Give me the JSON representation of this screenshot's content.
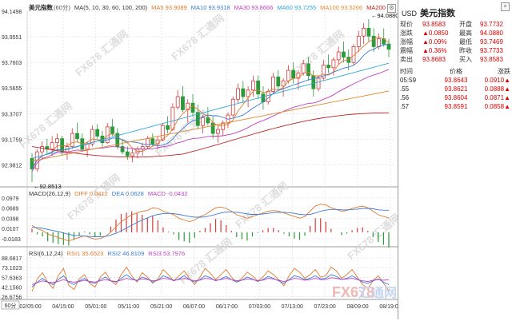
{
  "header": {
    "title": "美元指数",
    "period": "(60分)",
    "ma_label": "MA(5, 10, 30, 60, 100, 200)",
    "ma5": "MA5 93.9089",
    "ma10": "MA10 93.9318",
    "ma30": "MA30 93.8666",
    "ma60": "MA60 93.7255",
    "ma100": "MA100 93.5266",
    "ma200": "MA200"
  },
  "macd_header": {
    "label": "MACD(26,12,9)",
    "diff": "DIFF 0.0412",
    "dea": "DEA 0.0628",
    "macd": "MACD -0.0432"
  },
  "rsi_header": {
    "label": "RSI(6,12,24)",
    "rsi1": "RSI1 35.6523",
    "rsi2": "RSI2 46.8109",
    "rsi3": "RSI3 53.7976"
  },
  "price_axis": [
    "94.1498",
    "93.9551",
    "93.7603",
    "93.5655",
    "93.3707",
    "93.1759",
    "92.9812"
  ],
  "macd_axis": [
    "0.0979",
    "0.0689",
    "0.0398",
    "0.0107",
    "-0.0183"
  ],
  "rsi_axis": [
    "88.6817",
    "73.1023",
    "57.6363",
    "42.1560",
    "26.6756"
  ],
  "time_axis": [
    "02/05:00",
    "04/15:00",
    "05/01:00",
    "05/11:00",
    "05/21:00",
    "06/07:00",
    "06/17:00",
    "07/03:00",
    "07/13:00",
    "07/23:00",
    "08/09:00",
    "08/19:00"
  ],
  "period_badge": "60分",
  "high_label": "94.0880",
  "low_label": "92.8513",
  "watermark": "FX678 汇通网",
  "watermark_brand": "FX678",
  "watermark_cn": "汇通网",
  "side": {
    "symbol": "USD",
    "name": "美元指数",
    "quote": [
      {
        "k": "现价",
        "v": "93.8583",
        "k2": "开盘",
        "v2": "93.7732"
      },
      {
        "k": "涨跌",
        "v": "▲0.0850",
        "k2": "最高",
        "v2": "94.0880"
      },
      {
        "k": "涨幅",
        "v": "▲0.09%",
        "k2": "最低",
        "v2": "93.7469"
      },
      {
        "k": "震幅",
        "v": "▲0.36%",
        "k2": "昨收",
        "v2": "93.7733"
      },
      {
        "k": "卖出",
        "v": "93.8683",
        "k2": "买入",
        "v2": "93.8583"
      }
    ],
    "ticks_head": {
      "time": "时间",
      "price": "价格",
      "change": "涨跌"
    },
    "ticks": [
      {
        "t": "05:59",
        "p": "93.8643",
        "c": "0.0910▲"
      },
      {
        "t": ".55",
        "p": "93.8621",
        "c": "0.0888▲"
      },
      {
        "t": ".56",
        "p": "93.8604",
        "c": "0.0871▲"
      },
      {
        "t": ".57",
        "p": "93.8591",
        "c": "0.0858▲"
      }
    ]
  },
  "chart_data": {
    "type": "candlestick",
    "price_ylim": [
      92.85,
      94.15
    ],
    "candles": [
      [
        93.03,
        93.07,
        92.85,
        92.95
      ],
      [
        92.95,
        93.1,
        92.93,
        93.08
      ],
      [
        93.08,
        93.16,
        93.02,
        93.12
      ],
      [
        93.12,
        93.18,
        93.06,
        93.1
      ],
      [
        93.1,
        93.2,
        93.05,
        93.15
      ],
      [
        93.15,
        93.22,
        93.1,
        93.18
      ],
      [
        93.18,
        93.2,
        93.05,
        93.08
      ],
      [
        93.08,
        93.15,
        93.02,
        93.12
      ],
      [
        93.12,
        93.26,
        93.1,
        93.22
      ],
      [
        93.22,
        93.3,
        93.15,
        93.18
      ],
      [
        93.18,
        93.22,
        93.08,
        93.1
      ],
      [
        93.1,
        93.16,
        93.04,
        93.14
      ],
      [
        93.14,
        93.28,
        93.12,
        93.25
      ],
      [
        93.25,
        93.29,
        93.18,
        93.2
      ],
      [
        93.2,
        93.24,
        93.12,
        93.15
      ],
      [
        93.15,
        93.3,
        93.14,
        93.27
      ],
      [
        93.27,
        93.33,
        93.2,
        93.22
      ],
      [
        93.22,
        93.26,
        93.1,
        93.12
      ],
      [
        93.12,
        93.18,
        93.06,
        93.08
      ],
      [
        93.08,
        93.12,
        93.02,
        93.05
      ],
      [
        93.05,
        93.1,
        93.0,
        93.07
      ],
      [
        93.07,
        93.12,
        93.03,
        93.1
      ],
      [
        93.1,
        93.15,
        93.05,
        93.12
      ],
      [
        93.12,
        93.2,
        93.1,
        93.18
      ],
      [
        93.18,
        93.22,
        93.12,
        93.14
      ],
      [
        93.14,
        93.2,
        93.1,
        93.17
      ],
      [
        93.17,
        93.3,
        93.16,
        93.28
      ],
      [
        93.28,
        93.35,
        93.22,
        93.25
      ],
      [
        93.25,
        93.45,
        93.24,
        93.42
      ],
      [
        93.42,
        93.55,
        93.4,
        93.5
      ],
      [
        93.5,
        93.58,
        93.38,
        93.4
      ],
      [
        93.4,
        93.48,
        93.3,
        93.45
      ],
      [
        93.45,
        93.52,
        93.35,
        93.38
      ],
      [
        93.38,
        93.44,
        93.25,
        93.28
      ],
      [
        93.28,
        93.36,
        93.22,
        93.34
      ],
      [
        93.34,
        93.42,
        93.28,
        93.3
      ],
      [
        93.3,
        93.35,
        93.18,
        93.22
      ],
      [
        93.22,
        93.28,
        93.15,
        93.25
      ],
      [
        93.25,
        93.32,
        93.2,
        93.3
      ],
      [
        93.3,
        93.38,
        93.26,
        93.36
      ],
      [
        93.36,
        93.5,
        93.34,
        93.48
      ],
      [
        93.48,
        93.6,
        93.45,
        93.56
      ],
      [
        93.56,
        93.62,
        93.45,
        93.5
      ],
      [
        93.5,
        93.58,
        93.42,
        93.55
      ],
      [
        93.55,
        93.66,
        93.5,
        93.62
      ],
      [
        93.62,
        93.66,
        93.48,
        93.52
      ],
      [
        93.52,
        93.58,
        93.4,
        93.46
      ],
      [
        93.46,
        93.56,
        93.44,
        93.54
      ],
      [
        93.54,
        93.68,
        93.52,
        93.65
      ],
      [
        93.65,
        93.7,
        93.55,
        93.58
      ],
      [
        93.58,
        93.64,
        93.5,
        93.62
      ],
      [
        93.62,
        93.74,
        93.6,
        93.7
      ],
      [
        93.7,
        93.76,
        93.6,
        93.64
      ],
      [
        93.64,
        93.7,
        93.55,
        93.68
      ],
      [
        93.68,
        93.78,
        93.66,
        93.75
      ],
      [
        93.75,
        93.8,
        93.62,
        93.66
      ],
      [
        93.66,
        93.7,
        93.5,
        93.56
      ],
      [
        93.56,
        93.66,
        93.54,
        93.64
      ],
      [
        93.64,
        93.78,
        93.62,
        93.74
      ],
      [
        93.74,
        93.82,
        93.68,
        93.72
      ],
      [
        93.72,
        93.8,
        93.66,
        93.78
      ],
      [
        93.78,
        93.88,
        93.74,
        93.84
      ],
      [
        93.84,
        93.92,
        93.76,
        93.8
      ],
      [
        93.8,
        93.86,
        93.7,
        93.76
      ],
      [
        93.76,
        93.9,
        93.74,
        93.88
      ],
      [
        93.88,
        94.0,
        93.84,
        93.96
      ],
      [
        93.96,
        94.06,
        93.9,
        94.02
      ],
      [
        94.02,
        94.09,
        93.92,
        93.96
      ],
      [
        93.96,
        94.02,
        93.84,
        93.88
      ],
      [
        93.88,
        93.98,
        93.86,
        93.94
      ],
      [
        93.94,
        94.02,
        93.88,
        93.9
      ],
      [
        93.9,
        93.94,
        93.8,
        93.86
      ]
    ],
    "macd_ylim": [
      -0.03,
      0.1
    ],
    "macd_diff": [
      0.02,
      0.01,
      0.005,
      -0.005,
      -0.01,
      -0.015,
      -0.02,
      -0.025,
      -0.02,
      -0.015,
      -0.01,
      -0.015,
      -0.02,
      -0.018,
      -0.012,
      0.0,
      0.015,
      0.03,
      0.04,
      0.05,
      0.055,
      0.06,
      0.062,
      0.07,
      0.068,
      0.06,
      0.055,
      0.05,
      0.04,
      0.035,
      0.03,
      0.035,
      0.045,
      0.05,
      0.06,
      0.07,
      0.072,
      0.068,
      0.06,
      0.05,
      0.045,
      0.04,
      0.045,
      0.05,
      0.055,
      0.06,
      0.062,
      0.06,
      0.055,
      0.05,
      0.045,
      0.04,
      0.045,
      0.06,
      0.075,
      0.08,
      0.078,
      0.07,
      0.065,
      0.06,
      0.062,
      0.068,
      0.072,
      0.075,
      0.07,
      0.06,
      0.05,
      0.045,
      0.041
    ],
    "macd_dea": [
      0.015,
      0.013,
      0.011,
      0.008,
      0.005,
      0.002,
      -0.002,
      -0.006,
      -0.009,
      -0.01,
      -0.011,
      -0.012,
      -0.013,
      -0.013,
      -0.012,
      -0.008,
      -0.003,
      0.004,
      0.012,
      0.02,
      0.028,
      0.035,
      0.041,
      0.047,
      0.051,
      0.053,
      0.054,
      0.053,
      0.051,
      0.048,
      0.045,
      0.043,
      0.043,
      0.044,
      0.047,
      0.051,
      0.055,
      0.058,
      0.058,
      0.057,
      0.055,
      0.052,
      0.051,
      0.051,
      0.052,
      0.054,
      0.056,
      0.057,
      0.057,
      0.056,
      0.054,
      0.051,
      0.05,
      0.051,
      0.055,
      0.06,
      0.063,
      0.065,
      0.065,
      0.064,
      0.064,
      0.065,
      0.066,
      0.068,
      0.068,
      0.067,
      0.064,
      0.063,
      0.0628
    ],
    "rsi_ylim": [
      26,
      90
    ],
    "rsi1": [
      35,
      55,
      65,
      50,
      40,
      60,
      72,
      45,
      38,
      55,
      62,
      48,
      42,
      58,
      66,
      52,
      46,
      62,
      74,
      60,
      50,
      65,
      58,
      48,
      55,
      70,
      62,
      52,
      60,
      68,
      56,
      46,
      58,
      72,
      64,
      54,
      62,
      70,
      58,
      50,
      56,
      66,
      60,
      52,
      58,
      68,
      62,
      54,
      44,
      60,
      72,
      66,
      56,
      62,
      70,
      58,
      60,
      74,
      68,
      56,
      62,
      70,
      58,
      46,
      40,
      52,
      60,
      48,
      36
    ],
    "rsi2": [
      42,
      50,
      56,
      50,
      46,
      54,
      60,
      50,
      46,
      52,
      56,
      50,
      48,
      54,
      58,
      52,
      50,
      56,
      62,
      56,
      52,
      58,
      55,
      50,
      53,
      60,
      57,
      52,
      55,
      60,
      54,
      50,
      54,
      60,
      57,
      52,
      55,
      59,
      54,
      50,
      53,
      58,
      55,
      51,
      54,
      59,
      56,
      52,
      48,
      54,
      60,
      58,
      54,
      56,
      60,
      55,
      56,
      62,
      59,
      54,
      56,
      60,
      55,
      50,
      48,
      52,
      55,
      50,
      46
    ],
    "rsi3": [
      46,
      49,
      52,
      50,
      49,
      51,
      54,
      51,
      50,
      51,
      53,
      51,
      50,
      52,
      54,
      52,
      51,
      53,
      56,
      54,
      53,
      55,
      54,
      52,
      53,
      56,
      55,
      53,
      54,
      56,
      54,
      52,
      53,
      56,
      55,
      53,
      54,
      56,
      54,
      52,
      53,
      55,
      54,
      52,
      53,
      56,
      55,
      53,
      51,
      53,
      56,
      55,
      53,
      54,
      56,
      54,
      54,
      57,
      56,
      54,
      55,
      56,
      54,
      52,
      51,
      53,
      54,
      53,
      53.8
    ],
    "moving_averages": [
      {
        "name": "MA5",
        "color": "#e07a2f"
      },
      {
        "name": "MA10",
        "color": "#3a7bd5"
      },
      {
        "name": "MA30",
        "color": "#c040c0"
      },
      {
        "name": "MA60",
        "color": "#2aa7d8"
      },
      {
        "name": "MA100",
        "color": "#e08a30"
      },
      {
        "name": "MA200",
        "color": "#c02020"
      }
    ]
  }
}
